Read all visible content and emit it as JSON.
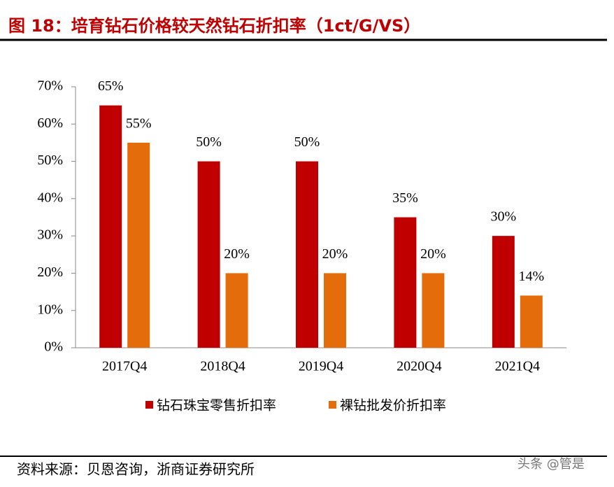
{
  "header": {
    "title": "图 18：培育钻石价格较天然钻石折扣率（1ct/G/VS）"
  },
  "chart_data": {
    "type": "bar",
    "categories": [
      "2017Q4",
      "2018Q4",
      "2019Q4",
      "2020Q4",
      "2021Q4"
    ],
    "series": [
      {
        "name": "钻石珠宝零售折扣率",
        "color": "#c00000",
        "values": [
          65,
          50,
          50,
          35,
          30
        ],
        "value_labels": [
          "65%",
          "50%",
          "50%",
          "35%",
          "30%"
        ]
      },
      {
        "name": "裸钻批发价折扣率",
        "color": "#e46c0a",
        "values": [
          55,
          20,
          20,
          20,
          14
        ],
        "value_labels": [
          "55%",
          "20%",
          "20%",
          "20%",
          "14%"
        ]
      }
    ],
    "ylim": [
      0,
      70
    ],
    "yticks": [
      {
        "value": 0,
        "label": "0%"
      },
      {
        "value": 10,
        "label": "10%"
      },
      {
        "value": 20,
        "label": "20%"
      },
      {
        "value": 30,
        "label": "30%"
      },
      {
        "value": 40,
        "label": "40%"
      },
      {
        "value": 50,
        "label": "50%"
      },
      {
        "value": 60,
        "label": "60%"
      },
      {
        "value": 70,
        "label": "70%"
      }
    ],
    "legend": "bottom"
  },
  "footer": {
    "source": "资料来源：贝恩咨询，浙商证券研究所",
    "watermark": "头条 @管是"
  }
}
